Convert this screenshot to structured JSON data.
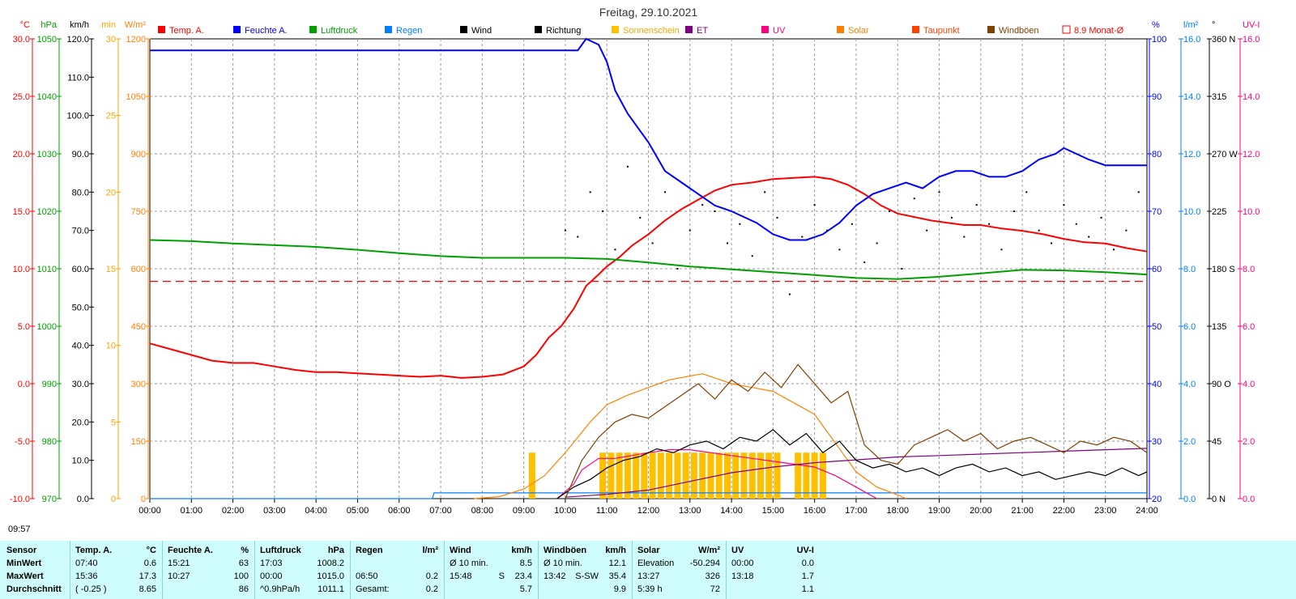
{
  "chart_data": {
    "type": "line",
    "title": "Freitag, 29.10.2021",
    "x_ticks": [
      "00:00",
      "01:00",
      "02:00",
      "03:00",
      "04:00",
      "05:00",
      "06:00",
      "07:00",
      "08:00",
      "09:00",
      "10:00",
      "11:00",
      "12:00",
      "13:00",
      "14:00",
      "15:00",
      "16:00",
      "17:00",
      "18:00",
      "19:00",
      "20:00",
      "21:00",
      "22:00",
      "23:00",
      "24:00"
    ],
    "xlim": [
      0,
      24
    ],
    "grid": true,
    "axes": {
      "temp": {
        "unit": "°C",
        "color": "#ff0000",
        "ticks": [
          "30.0",
          "25.0",
          "20.0",
          "15.0",
          "10.0",
          "5.0",
          "0.0",
          "-5.0",
          "-10.0"
        ],
        "range": [
          -10,
          30
        ]
      },
      "hpa": {
        "unit": "hPa",
        "color": "#00a000",
        "ticks": [
          "1050",
          "1040",
          "1030",
          "1020",
          "1010",
          "1000",
          "990",
          "980",
          "970"
        ],
        "range": [
          970,
          1050
        ]
      },
      "kmh": {
        "unit": "km/h",
        "color": "#000000",
        "ticks": [
          "120.0",
          "110.0",
          "100.0",
          "90.0",
          "80.0",
          "70.0",
          "60.0",
          "50.0",
          "40.0",
          "30.0",
          "20.0",
          "10.0",
          "0.0"
        ],
        "range": [
          0,
          120
        ]
      },
      "min": {
        "unit": "min",
        "color": "#ffa500",
        "ticks": [
          "30",
          "25",
          "20",
          "15",
          "10",
          "5",
          "0"
        ],
        "range": [
          0,
          30
        ]
      },
      "wm2": {
        "unit": "W/m²",
        "color": "#ff8000",
        "ticks": [
          "1200",
          "1050",
          "900",
          "750",
          "600",
          "450",
          "300",
          "150",
          "0"
        ],
        "range": [
          0,
          1200
        ]
      },
      "pct": {
        "unit": "%",
        "color": "#0000ff",
        "ticks": [
          "100",
          "90",
          "80",
          "70",
          "60",
          "50",
          "40",
          "30",
          "20"
        ],
        "range": [
          20,
          100
        ]
      },
      "lm2": {
        "unit": "l/m²",
        "color": "#0080ff",
        "ticks": [
          "16.0",
          "14.0",
          "12.0",
          "10.0",
          "8.0",
          "6.0",
          "4.0",
          "2.0",
          "0.0"
        ],
        "range": [
          0,
          16
        ]
      },
      "deg": {
        "unit": "°",
        "color": "#000000",
        "ticks": [
          "360 N",
          "315",
          "270 W",
          "225",
          "180 S",
          "135",
          "90 O",
          "45",
          "0 N"
        ],
        "range": [
          0,
          360
        ]
      },
      "uvi": {
        "unit": "UV-I",
        "color": "#ff0080",
        "ticks": [
          "16.0",
          "14.0",
          "12.0",
          "10.0",
          "8.0",
          "6.0",
          "4.0",
          "2.0",
          "0.0"
        ],
        "range": [
          0,
          16
        ]
      }
    },
    "legend": [
      {
        "name": "Temp. A.",
        "color": "#ff0000"
      },
      {
        "name": "Feuchte A.",
        "color": "#0000ff"
      },
      {
        "name": "Luftdruck",
        "color": "#00a000"
      },
      {
        "name": "Regen",
        "color": "#0080ff"
      },
      {
        "name": "Wind",
        "color": "#000000"
      },
      {
        "name": "Richtung",
        "color": "#000000"
      },
      {
        "name": "Sonnenschein",
        "color": "#ffc000"
      },
      {
        "name": "ET",
        "color": "#800080"
      },
      {
        "name": "UV",
        "color": "#ff0080"
      },
      {
        "name": "Solar",
        "color": "#ff8000"
      },
      {
        "name": "Taupunkt",
        "color": "#ff4000"
      },
      {
        "name": "Windböen",
        "color": "#804000"
      },
      {
        "name": "8.9 Monat-Ø",
        "color": "#ff0000"
      }
    ],
    "series": [
      {
        "name": "Temp. A.",
        "axis": "temp",
        "color": "#ff0000",
        "x": [
          0,
          0.5,
          1,
          1.5,
          2,
          2.5,
          3,
          3.5,
          4,
          4.5,
          5,
          5.5,
          6,
          6.5,
          7,
          7.5,
          8,
          8.5,
          9,
          9.3,
          9.6,
          9.9,
          10.2,
          10.5,
          10.8,
          11,
          11.3,
          11.6,
          12,
          12.4,
          12.8,
          13.2,
          13.6,
          14,
          14.5,
          15,
          15.5,
          16,
          16.4,
          16.8,
          17.2,
          17.6,
          18,
          18.4,
          18.8,
          19.2,
          19.6,
          20,
          20.5,
          21,
          21.5,
          22,
          22.5,
          23,
          23.5,
          24
        ],
        "y": [
          3.5,
          3.0,
          2.5,
          2.0,
          1.8,
          1.8,
          1.5,
          1.2,
          1.0,
          1.0,
          0.9,
          0.8,
          0.7,
          0.6,
          0.7,
          0.5,
          0.6,
          0.8,
          1.5,
          2.5,
          4.0,
          5.0,
          6.5,
          8.5,
          9.5,
          10.2,
          11.0,
          12.0,
          13.0,
          14.2,
          15.2,
          16.0,
          16.8,
          17.3,
          17.5,
          17.8,
          17.9,
          18.0,
          17.8,
          17.3,
          16.5,
          15.5,
          14.8,
          14.5,
          14.2,
          14.0,
          13.8,
          13.8,
          13.5,
          13.3,
          13.0,
          12.6,
          12.3,
          12.2,
          11.8,
          11.5
        ]
      },
      {
        "name": "Feuchte A.",
        "axis": "pct",
        "color": "#0000ff",
        "x": [
          0,
          1,
          2,
          3,
          4,
          5,
          6,
          7,
          8,
          9,
          10,
          10.3,
          10.5,
          10.8,
          11,
          11.2,
          11.5,
          11.8,
          12,
          12.4,
          12.8,
          13.2,
          13.6,
          14,
          14.3,
          14.6,
          15,
          15.4,
          15.8,
          16.2,
          16.6,
          17,
          17.4,
          17.8,
          18.2,
          18.6,
          19,
          19.4,
          19.8,
          20.2,
          20.6,
          21,
          21.4,
          21.8,
          22,
          22.3,
          22.6,
          23,
          23.5,
          24
        ],
        "y": [
          98,
          98,
          98,
          98,
          98,
          98,
          98,
          98,
          98,
          98,
          98,
          98,
          100,
          99,
          96,
          91,
          87,
          84,
          82,
          77,
          75,
          73,
          71,
          70,
          69,
          68,
          66,
          65,
          65,
          66,
          68,
          71,
          73,
          74,
          75,
          74,
          76,
          77,
          77,
          76,
          76,
          77,
          79,
          80,
          81,
          80,
          79,
          78,
          78,
          78
        ]
      },
      {
        "name": "Luftdruck",
        "axis": "hpa",
        "color": "#00a000",
        "x": [
          0,
          1,
          2,
          3,
          4,
          5,
          6,
          7,
          8,
          9,
          10,
          11,
          12,
          13,
          14,
          15,
          16,
          17,
          18,
          19,
          20,
          21,
          22,
          23,
          24
        ],
        "y": [
          1015.0,
          1014.8,
          1014.4,
          1014.1,
          1013.8,
          1013.3,
          1012.7,
          1012.2,
          1011.9,
          1011.9,
          1011.9,
          1011.7,
          1011.1,
          1010.4,
          1009.9,
          1009.4,
          1008.9,
          1008.4,
          1008.2,
          1008.6,
          1009.2,
          1009.8,
          1009.7,
          1009.4,
          1009.0
        ]
      },
      {
        "name": "Regen",
        "axis": "lm2",
        "color": "#0080ff",
        "x": [
          0,
          6.8,
          6.84,
          24
        ],
        "y": [
          0,
          0,
          0.2,
          0.2
        ]
      },
      {
        "name": "Solar",
        "axis": "wm2",
        "color": "#ff8000",
        "x": [
          7.8,
          8.4,
          9,
          9.5,
          10,
          10.3,
          10.6,
          11,
          11.5,
          12,
          12.5,
          13,
          13.3,
          13.6,
          14,
          14.5,
          15,
          15.5,
          16,
          16.4,
          16.8,
          17,
          17.5,
          18,
          18.2
        ],
        "y": [
          0,
          5,
          25,
          60,
          120,
          160,
          200,
          245,
          270,
          290,
          310,
          320,
          326,
          315,
          300,
          290,
          280,
          250,
          220,
          160,
          100,
          70,
          30,
          10,
          0
        ]
      },
      {
        "name": "UV",
        "axis": "uvi",
        "color": "#ff0080",
        "x": [
          9.8,
          10.2,
          10.4,
          10.8,
          11.2,
          11.6,
          12,
          12.5,
          13,
          13.5,
          14,
          14.5,
          15,
          15.5,
          16,
          16.5,
          17,
          17.5
        ],
        "y": [
          0,
          0.5,
          1.0,
          1.4,
          1.4,
          1.5,
          1.6,
          1.7,
          1.7,
          1.6,
          1.5,
          1.4,
          1.3,
          1.2,
          1.1,
          0.8,
          0.4,
          0
        ]
      },
      {
        "name": "ET",
        "axis": "lm2",
        "color": "#800080",
        "x": [
          10,
          11,
          12,
          13,
          14,
          15,
          16,
          17,
          18,
          19,
          20,
          21,
          22,
          23,
          24
        ],
        "y": [
          0.05,
          0.15,
          0.3,
          0.6,
          0.9,
          1.1,
          1.25,
          1.35,
          1.45,
          1.5,
          1.55,
          1.6,
          1.65,
          1.7,
          1.75
        ]
      },
      {
        "name": "Wind",
        "axis": "kmh",
        "color": "#000000",
        "x": [
          9.8,
          10.2,
          10.6,
          11,
          11.4,
          11.8,
          12.2,
          12.6,
          13,
          13.4,
          13.8,
          14.2,
          14.6,
          15,
          15.4,
          15.8,
          16.2,
          16.6,
          17,
          17.4,
          17.8,
          18.2,
          18.6,
          19,
          19.4,
          19.8,
          20.2,
          20.6,
          21,
          21.4,
          21.8,
          22.2,
          22.6,
          23,
          23.4,
          23.8,
          24
        ],
        "y": [
          0,
          3,
          5,
          8,
          10,
          11,
          13,
          12,
          14,
          15,
          13,
          16,
          15,
          18,
          14,
          17,
          12,
          15,
          10,
          8,
          9,
          7,
          8,
          6,
          8,
          9,
          7,
          8,
          6,
          7,
          5,
          6,
          7,
          6,
          8,
          6,
          7
        ]
      },
      {
        "name": "Windböen",
        "axis": "kmh",
        "color": "#804000",
        "x": [
          10,
          10.4,
          10.8,
          11.2,
          11.6,
          12,
          12.4,
          12.8,
          13.2,
          13.6,
          14,
          14.4,
          14.8,
          15.2,
          15.6,
          16,
          16.4,
          16.8,
          17.2,
          17.6,
          18,
          18.4,
          18.8,
          19.2,
          19.6,
          20,
          20.4,
          20.8,
          21.2,
          21.6,
          22,
          22.4,
          22.8,
          23.2,
          23.6,
          24
        ],
        "y": [
          0,
          10,
          16,
          20,
          22,
          21,
          24,
          27,
          30,
          26,
          31,
          28,
          33,
          29,
          35,
          30,
          25,
          28,
          14,
          10,
          9,
          14,
          16,
          18,
          15,
          17,
          13,
          15,
          16,
          14,
          12,
          15,
          14,
          16,
          15,
          12
        ]
      },
      {
        "name": "Richtung",
        "axis": "deg",
        "color": "#000000",
        "kind": "points",
        "x": [
          10.0,
          10.3,
          10.6,
          10.9,
          11.2,
          11.5,
          11.8,
          12.1,
          12.4,
          12.7,
          13.0,
          13.3,
          13.6,
          13.9,
          14.2,
          14.5,
          14.8,
          15.1,
          15.4,
          15.7,
          16.0,
          16.3,
          16.6,
          16.9,
          17.2,
          17.5,
          17.8,
          18.1,
          18.4,
          18.7,
          19.0,
          19.3,
          19.6,
          19.9,
          20.2,
          20.5,
          20.8,
          21.1,
          21.4,
          21.7,
          22.0,
          22.3,
          22.6,
          22.9,
          23.2,
          23.5,
          23.8
        ],
        "y": [
          210,
          205,
          240,
          225,
          195,
          260,
          220,
          200,
          240,
          180,
          210,
          230,
          225,
          200,
          215,
          190,
          240,
          220,
          160,
          205,
          230,
          210,
          195,
          215,
          185,
          200,
          225,
          180,
          235,
          210,
          240,
          220,
          205,
          230,
          215,
          195,
          225,
          240,
          210,
          200,
          230,
          215,
          205,
          220,
          195,
          210,
          240
        ]
      }
    ],
    "bars": {
      "name": "Sonnenschein",
      "axis": "min",
      "color": "#ffc000",
      "x": [
        9.2,
        10.9,
        11.1,
        11.3,
        11.5,
        11.7,
        11.9,
        12.1,
        12.3,
        12.5,
        12.7,
        12.9,
        13.1,
        13.3,
        13.5,
        13.7,
        13.9,
        14.1,
        14.3,
        14.5,
        14.7,
        14.9,
        15.1,
        15.6,
        15.8,
        16.0,
        16.2
      ],
      "values": [
        3,
        3,
        3,
        3,
        3,
        3,
        3,
        3,
        3,
        3,
        3,
        3,
        3,
        3,
        3,
        3,
        3,
        3,
        3,
        3,
        3,
        3,
        3,
        3,
        3,
        3,
        3
      ]
    },
    "reference_line": {
      "name": "8.9 Monat-Ø",
      "axis": "temp",
      "value": 8.9,
      "color": "#ff0000"
    }
  },
  "time_label": "09:57",
  "stats": {
    "sensor": {
      "header": "Sensor",
      "rows": [
        "MinWert",
        "MaxWert",
        "Durchschnitt"
      ]
    },
    "temp": {
      "header": "Temp. A.",
      "unit": "°C",
      "rows": [
        [
          "07:40",
          "0.6"
        ],
        [
          "15:36",
          "17.3"
        ],
        [
          "( -0.25 )",
          "8.65"
        ]
      ]
    },
    "feuchte": {
      "header": "Feuchte A.",
      "unit": "%",
      "rows": [
        [
          "15:21",
          "63"
        ],
        [
          "10:27",
          "100"
        ],
        [
          "",
          "86"
        ]
      ]
    },
    "druck": {
      "header": "Luftdruck",
      "unit": "hPa",
      "rows": [
        [
          "17:03",
          "1008.2"
        ],
        [
          "00:00",
          "1015.0"
        ],
        [
          "^0.9hPa/h",
          "1011.1"
        ]
      ]
    },
    "regen": {
      "header": "Regen",
      "unit": "l/m²",
      "rows": [
        [
          "",
          ""
        ],
        [
          "06:50",
          "0.2"
        ],
        [
          "Gesamt:",
          "0.2"
        ]
      ]
    },
    "wind": {
      "header": "Wind",
      "unit": "km/h",
      "rows": [
        [
          "Ø 10 min.",
          "",
          "8.5"
        ],
        [
          "15:48",
          "S",
          "23.4"
        ],
        [
          "",
          "",
          "5.7"
        ]
      ]
    },
    "boeen": {
      "header": "Windböen",
      "unit": "km/h",
      "rows": [
        [
          "Ø 10 min.",
          "",
          "12.1"
        ],
        [
          "13:42",
          "S-SW",
          "35.4"
        ],
        [
          "",
          "",
          "9.9"
        ]
      ]
    },
    "solar": {
      "header": "Solar",
      "unit": "W/m²",
      "rows": [
        [
          "Elevation",
          "-50.294"
        ],
        [
          "13:27",
          "326"
        ],
        [
          "5:39 h",
          "72"
        ]
      ]
    },
    "uv": {
      "header": "UV",
      "unit": "UV-I",
      "rows": [
        [
          "00:00",
          "0.0"
        ],
        [
          "13:18",
          "1.7"
        ],
        [
          "",
          "1.1"
        ]
      ]
    }
  }
}
